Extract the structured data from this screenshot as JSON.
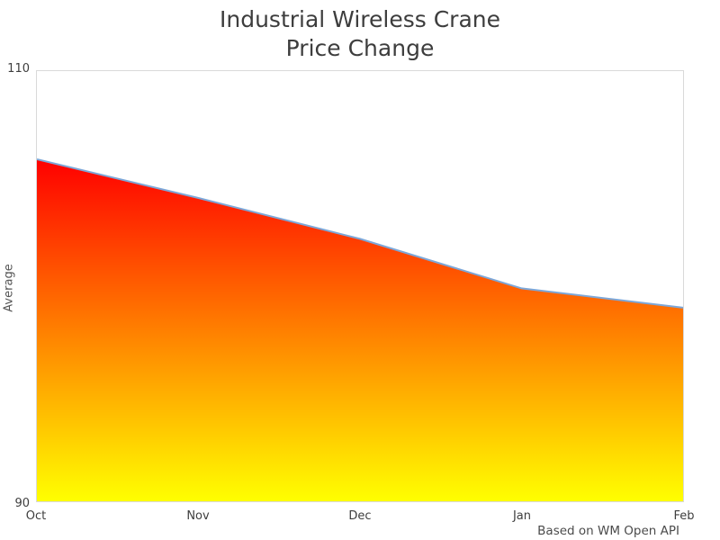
{
  "title": {
    "line1": "Industrial Wireless Crane",
    "line2": "Price Change"
  },
  "axes": {
    "y_label": "Average",
    "y_ticks": [
      "110",
      "90"
    ],
    "x_ticks": [
      "Oct",
      "Nov",
      "Dec",
      "Jan",
      "Feb"
    ]
  },
  "footer": {
    "caption": "Based on WM Open API"
  },
  "colors": {
    "title_text": "#3d3d3d",
    "axis_text": "#3e3e3e",
    "plot_border": "#d9d9d9",
    "area_gradient_top": "#ff0000",
    "area_gradient_bottom": "#ffff00",
    "line_stroke": "#7da7d8",
    "background": "#ffffff"
  },
  "chart_data": {
    "type": "area",
    "title": "Industrial Wireless Crane Price Change",
    "categories": [
      "Oct",
      "Nov",
      "Dec",
      "Jan",
      "Feb"
    ],
    "values": [
      105.9,
      104.1,
      102.2,
      99.9,
      99.0
    ],
    "xlabel": "",
    "ylabel": "Average",
    "ylim": [
      90,
      110
    ],
    "y_tick_values": [
      90,
      110
    ],
    "grid": false,
    "legend": "none",
    "fill_gradient": [
      "#ff0000",
      "#ffff00"
    ],
    "line_color": "#7da7d8",
    "caption": "Based on WM Open API"
  }
}
